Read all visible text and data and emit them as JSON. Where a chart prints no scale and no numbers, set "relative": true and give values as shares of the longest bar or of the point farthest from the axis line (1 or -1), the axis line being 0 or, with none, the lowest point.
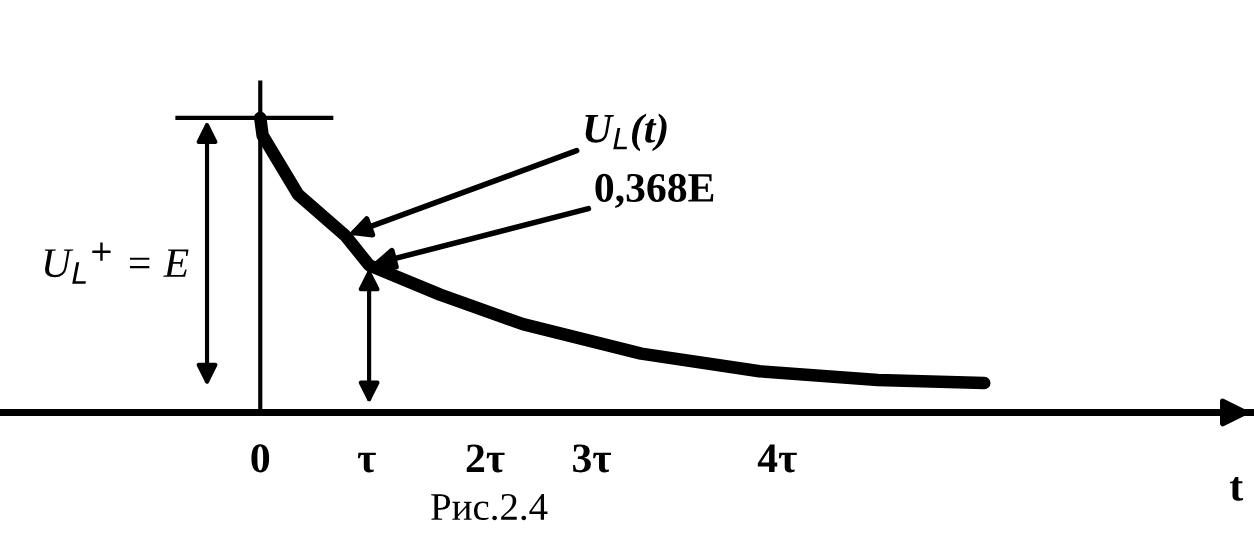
{
  "chart_data": {
    "type": "line",
    "relative": true,
    "xlabel": "t",
    "x": [
      0,
      0.02,
      0.32,
      0.72,
      0.92,
      1.52,
      2.22,
      3.22,
      4.22,
      5.22,
      6.12
    ],
    "series": [
      {
        "color": "#000000",
        "values": [
          1,
          0.94,
          0.74,
          0.6,
          0.5,
          0.4,
          0.3,
          0.2,
          0.14,
          0.11,
          0.1
        ]
      }
    ],
    "xlim": [
      -2.2,
      8.4
    ],
    "xticks": [
      {
        "value": 0,
        "label": "0"
      },
      {
        "value": 0.9,
        "label": "τ"
      },
      {
        "value": 1.9,
        "label": "2τ"
      },
      {
        "value": 2.8,
        "label": "3τ"
      },
      {
        "value": 4.37,
        "label": "4τ"
      }
    ],
    "ref_lines": [
      {
        "axis": "y",
        "value": 1,
        "label": "U$_{L}$$^{+}$ = E",
        "color": "#000000"
      }
    ],
    "annotations": [
      {
        "text": "U$_{L}$(t)",
        "x": 0.72,
        "y": 0.6
      },
      {
        "text": "0,368E",
        "x": 0.92,
        "y": 0.5
      },
      "Рис.2.4"
    ],
    "legend": false,
    "marker": "none",
    "line_style": "solid"
  }
}
